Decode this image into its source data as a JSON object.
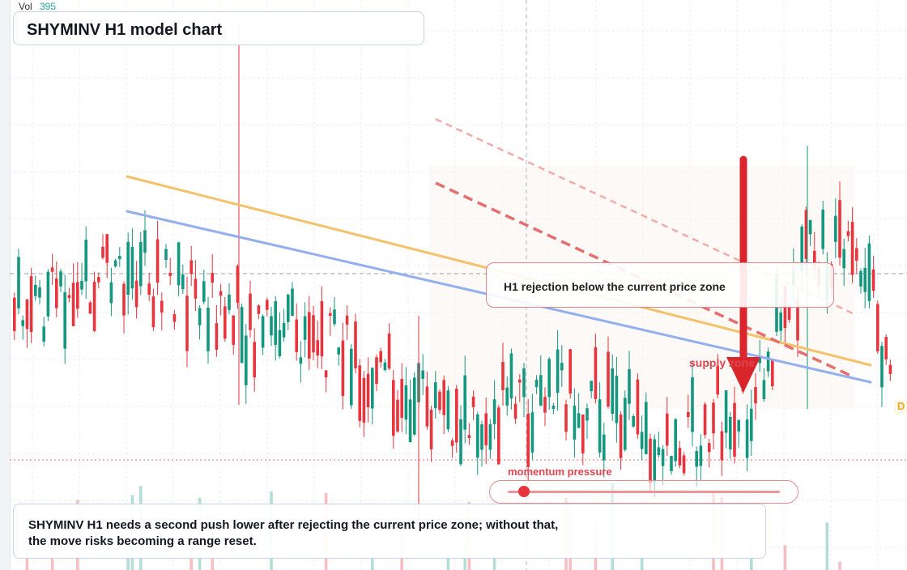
{
  "volume": {
    "label": "Vol",
    "value": "395"
  },
  "title": "SHYMINV H1 model chart",
  "callout": {
    "text": "H1 rejection below the current price zone"
  },
  "zone": {
    "label": "supply zone"
  },
  "momentum": {
    "label": "momentum pressure",
    "level": 0.04
  },
  "summary": {
    "line1": "SHYMINV H1 needs a second push lower after rejecting the current price zone; without that,",
    "line2": "the move risks becoming a range reset."
  },
  "right_tag": "D",
  "colors": {
    "up": "#14977f",
    "down": "#e8343d",
    "trend_orange": "#f5c26b",
    "trend_blue": "#93aff0",
    "channel_red": "#ea7c7c",
    "arrow": "#d9262c"
  }
}
